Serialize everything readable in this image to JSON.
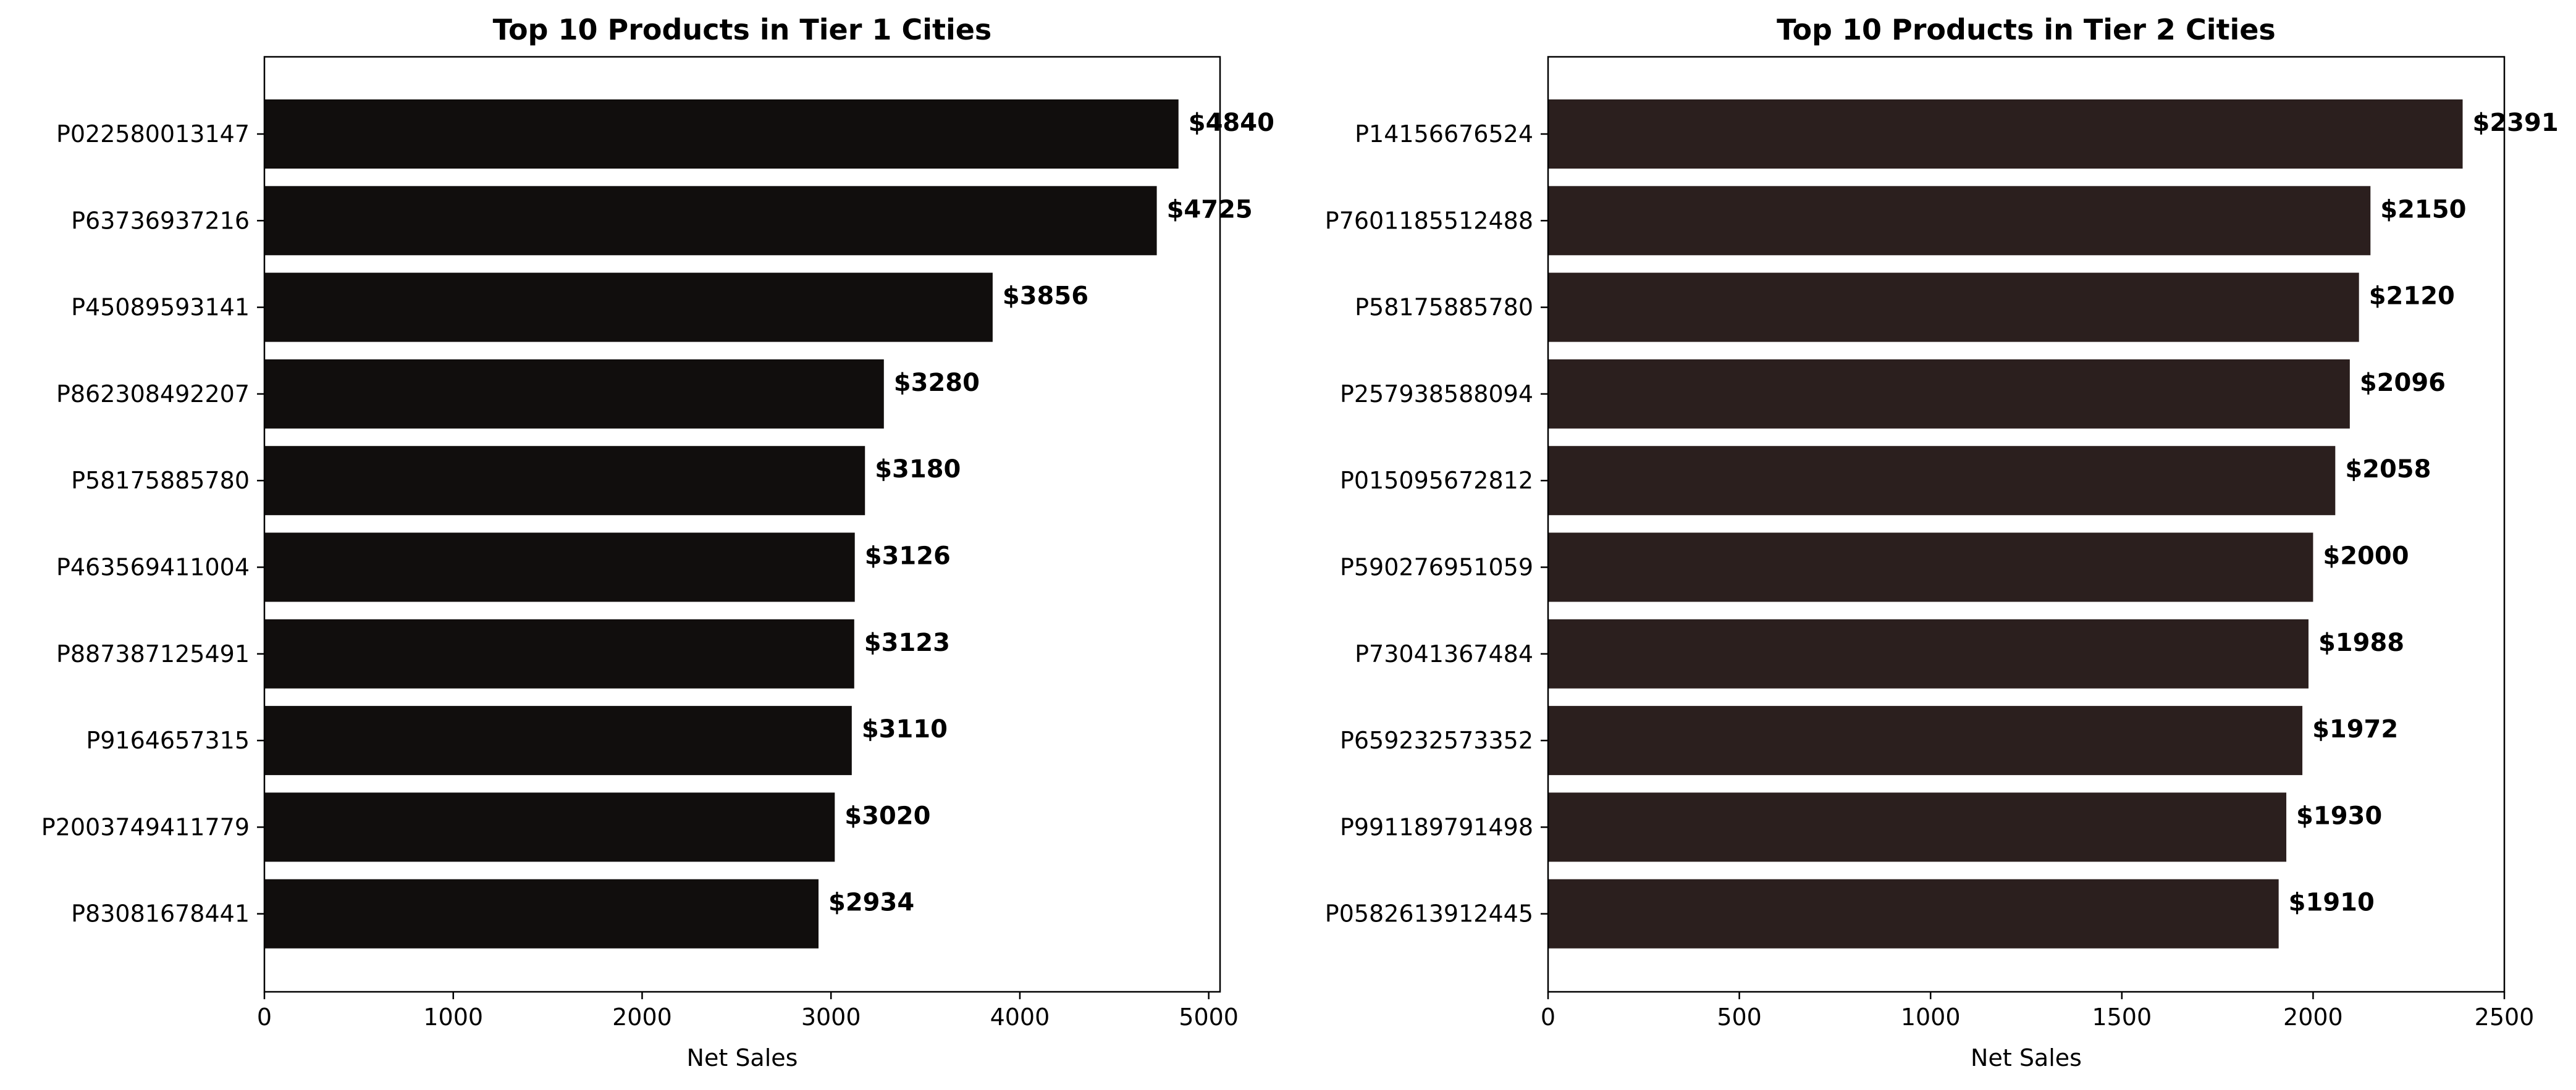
{
  "chart_data": [
    {
      "type": "bar",
      "orientation": "horizontal",
      "title": "Top 10 Products in Tier 1 Cities",
      "xlabel": "Net Sales",
      "ylabel": "",
      "xlim": [
        0,
        5060
      ],
      "xticks": [
        0,
        1000,
        2000,
        3000,
        4000,
        5000
      ],
      "grid": false,
      "bar_color": "#110e0d",
      "value_prefix": "$",
      "categories": [
        "P022580013147",
        "P63736937216",
        "P45089593141",
        "P862308492207",
        "P58175885780",
        "P463569411004",
        "P887387125491",
        "P9164657315",
        "P2003749411779",
        "P83081678441"
      ],
      "values": [
        4840,
        4725,
        3856,
        3280,
        3180,
        3126,
        3123,
        3110,
        3020,
        2934
      ]
    },
    {
      "type": "bar",
      "orientation": "horizontal",
      "title": "Top 10 Products in Tier 2 Cities",
      "xlabel": "Net Sales",
      "ylabel": "",
      "xlim": [
        0,
        2500
      ],
      "xticks": [
        0,
        500,
        1000,
        1500,
        2000,
        2500
      ],
      "grid": false,
      "bar_color": "#2b1f1e",
      "value_prefix": "$",
      "categories": [
        "P14156676524",
        "P7601185512488",
        "P58175885780",
        "P257938588094",
        "P015095672812",
        "P590276951059",
        "P73041367484",
        "P659232573352",
        "P991189791498",
        "P0582613912445"
      ],
      "values": [
        2391,
        2150,
        2120,
        2096,
        2058,
        2000,
        1988,
        1972,
        1930,
        1910
      ]
    }
  ]
}
